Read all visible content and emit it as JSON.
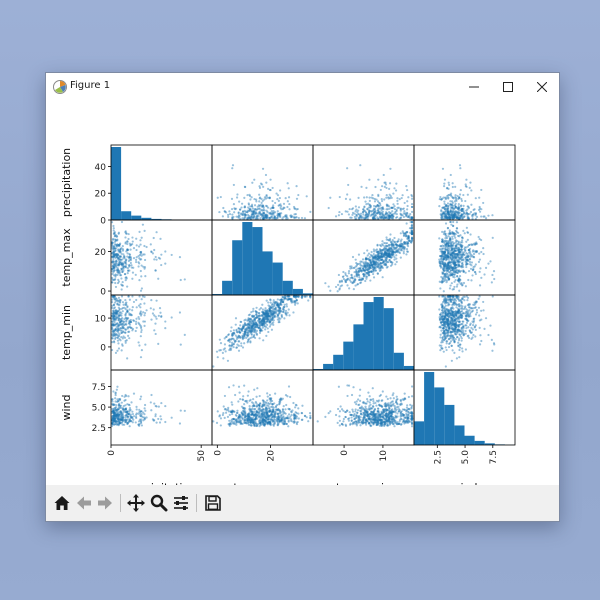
{
  "window": {
    "title": "Figure 1"
  },
  "toolbar": {
    "items": [
      "home-icon",
      "back-icon",
      "forward-icon",
      "pan-icon",
      "zoom-icon",
      "configure-subplots-icon",
      "save-icon"
    ]
  },
  "chart_data": {
    "type": "scatter",
    "title": "",
    "variables": [
      "precipitation",
      "temp_max",
      "temp_min",
      "wind"
    ],
    "ranges": {
      "precipitation": [
        0,
        56
      ],
      "temp_max": [
        -2,
        36
      ],
      "temp_min": [
        -8,
        18
      ],
      "wind": [
        0.4,
        9.5
      ]
    },
    "row_ticks": {
      "precipitation": [
        "0",
        "20",
        "40"
      ],
      "temp_max": [
        "0",
        "20"
      ],
      "temp_min": [
        "0",
        "10"
      ],
      "wind": [
        "2.5",
        "5.0",
        "7.5"
      ]
    },
    "row_tick_values": {
      "precipitation": [
        0,
        20,
        40
      ],
      "temp_max": [
        0,
        20
      ],
      "temp_min": [
        0,
        10
      ],
      "wind": [
        2.5,
        5.0,
        7.5
      ]
    },
    "col_ticks": {
      "precipitation": [
        "0",
        "50"
      ],
      "temp_max": [
        "0",
        "20"
      ],
      "temp_min": [
        "0",
        "10"
      ],
      "wind": [
        "2.5",
        "5.0",
        "7.5"
      ]
    },
    "col_tick_values": {
      "precipitation": [
        0,
        50
      ],
      "temp_max": [
        0,
        20
      ],
      "temp_min": [
        0,
        10
      ],
      "wind": [
        2.5,
        5.0,
        7.5
      ]
    },
    "histograms": {
      "precipitation": [
        1000,
        120,
        60,
        30,
        15,
        10,
        5,
        3,
        2,
        1
      ],
      "temp_max": [
        5,
        70,
        270,
        360,
        335,
        215,
        160,
        70,
        30,
        8
      ],
      "temp_min": [
        5,
        30,
        75,
        140,
        225,
        335,
        360,
        305,
        85,
        20
      ],
      "wind": [
        115,
        355,
        280,
        195,
        95,
        45,
        20,
        8,
        3,
        1
      ]
    },
    "color": "#1f77b4",
    "diagonal": "hist",
    "grid": false
  }
}
